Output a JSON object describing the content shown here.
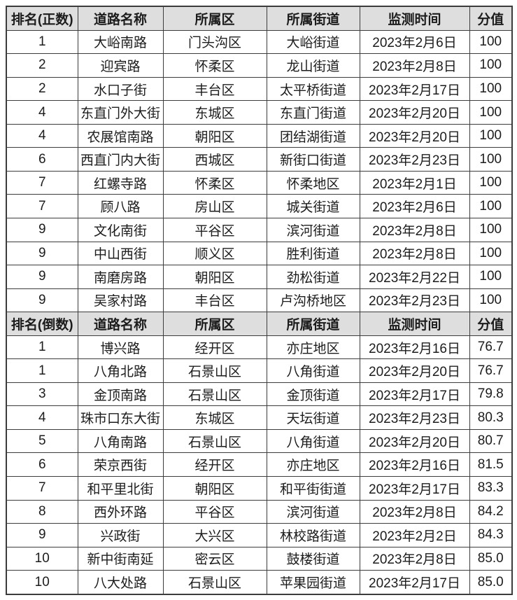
{
  "colors": {
    "header_background": "#dedede",
    "border": "#3c3c3c",
    "text": "#1c1c1c",
    "row_background": "#ffffff"
  },
  "chart_data": [
    {
      "type": "table",
      "title": "排名(正数)",
      "columns": [
        "排名(正数)",
        "道路名称",
        "所属区",
        "所属街道",
        "监测时间",
        "分值"
      ],
      "rows": [
        [
          "1",
          "大峪南路",
          "门头沟区",
          "大峪街道",
          "2023年2月6日",
          "100"
        ],
        [
          "2",
          "迎宾路",
          "怀柔区",
          "龙山街道",
          "2023年2月8日",
          "100"
        ],
        [
          "2",
          "水口子街",
          "丰台区",
          "太平桥街道",
          "2023年2月17日",
          "100"
        ],
        [
          "4",
          "东直门外大街",
          "东城区",
          "东直门街道",
          "2023年2月20日",
          "100"
        ],
        [
          "4",
          "农展馆南路",
          "朝阳区",
          "团结湖街道",
          "2023年2月20日",
          "100"
        ],
        [
          "6",
          "西直门内大街",
          "西城区",
          "新街口街道",
          "2023年2月23日",
          "100"
        ],
        [
          "7",
          "红螺寺路",
          "怀柔区",
          "怀柔地区",
          "2023年2月1日",
          "100"
        ],
        [
          "7",
          "顾八路",
          "房山区",
          "城关街道",
          "2023年2月6日",
          "100"
        ],
        [
          "9",
          "文化南街",
          "平谷区",
          "滨河街道",
          "2023年2月8日",
          "100"
        ],
        [
          "9",
          "中山西街",
          "顺义区",
          "胜利街道",
          "2023年2月8日",
          "100"
        ],
        [
          "9",
          "南磨房路",
          "朝阳区",
          "劲松街道",
          "2023年2月22日",
          "100"
        ],
        [
          "9",
          "吴家村路",
          "丰台区",
          "卢沟桥地区",
          "2023年2月23日",
          "100"
        ]
      ]
    },
    {
      "type": "table",
      "title": "排名(倒数)",
      "columns": [
        "排名(倒数)",
        "道路名称",
        "所属区",
        "所属街道",
        "监测时间",
        "分值"
      ],
      "rows": [
        [
          "1",
          "博兴路",
          "经开区",
          "亦庄地区",
          "2023年2月16日",
          "76.7"
        ],
        [
          "1",
          "八角北路",
          "石景山区",
          "八角街道",
          "2023年2月20日",
          "76.7"
        ],
        [
          "3",
          "金顶南路",
          "石景山区",
          "金顶街道",
          "2023年2月17日",
          "79.8"
        ],
        [
          "4",
          "珠市口东大街",
          "东城区",
          "天坛街道",
          "2023年2月23日",
          "80.3"
        ],
        [
          "5",
          "八角南路",
          "石景山区",
          "八角街道",
          "2023年2月20日",
          "80.7"
        ],
        [
          "6",
          "荣京西街",
          "经开区",
          "亦庄地区",
          "2023年2月16日",
          "81.5"
        ],
        [
          "7",
          "和平里北街",
          "朝阳区",
          "和平街街道",
          "2023年2月17日",
          "83.3"
        ],
        [
          "8",
          "西外环路",
          "平谷区",
          "滨河街道",
          "2023年2月8日",
          "84.2"
        ],
        [
          "9",
          "兴政街",
          "大兴区",
          "林校路街道",
          "2023年2月2日",
          "84.3"
        ],
        [
          "10",
          "新中街南延",
          "密云区",
          "鼓楼街道",
          "2023年2月8日",
          "85.0"
        ],
        [
          "10",
          "八大处路",
          "石景山区",
          "苹果园街道",
          "2023年2月17日",
          "85.0"
        ]
      ]
    }
  ]
}
